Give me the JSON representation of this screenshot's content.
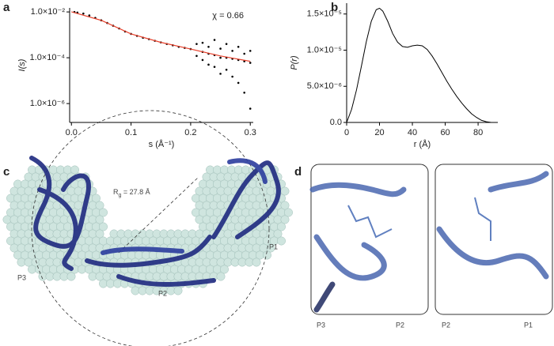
{
  "chart_data": [
    {
      "type": "scatter",
      "panel": "a",
      "x_label": "s (Å⁻¹)",
      "y_label": "I(s)",
      "annotation": "χ = 0.66",
      "yscale": "log",
      "xlim": [
        -0.003,
        0.305
      ],
      "ylim": [
        1.5e-07,
        0.015
      ],
      "xticks": [
        {
          "value": 0,
          "label": "0.0"
        },
        0.1,
        0.2,
        0.3
      ],
      "yticks": [
        {
          "value": 0.01,
          "label": "1.0×10⁻²"
        },
        {
          "value": 0.0001,
          "label": "1.0×10⁻⁴"
        },
        {
          "value": 1e-06,
          "label": "1.0×10⁻⁶"
        }
      ],
      "points": {
        "color": "#000000",
        "x": [
          0.005,
          0.01,
          0.02,
          0.03,
          0.04,
          0.05,
          0.06,
          0.07,
          0.08,
          0.09,
          0.1,
          0.11,
          0.12,
          0.13,
          0.14,
          0.15,
          0.16,
          0.17,
          0.18,
          0.19,
          0.2,
          0.21,
          0.21,
          0.22,
          0.22,
          0.22,
          0.23,
          0.23,
          0.23,
          0.24,
          0.24,
          0.24,
          0.25,
          0.25,
          0.25,
          0.26,
          0.26,
          0.26,
          0.27,
          0.27,
          0.27,
          0.28,
          0.28,
          0.28,
          0.29,
          0.29,
          0.29,
          0.3,
          0.3,
          0.3
        ],
        "y": [
          0.0099,
          0.0094,
          0.0085,
          0.007,
          0.0055,
          0.0043,
          0.0033,
          0.0025,
          0.0019,
          0.0014,
          0.0011,
          0.0009,
          0.00075,
          0.00065,
          0.00055,
          0.00047,
          0.0004,
          0.00035,
          0.0003,
          0.00027,
          0.00024,
          0.0004,
          0.00012,
          0.00018,
          0.00045,
          8e-05,
          0.00015,
          0.0003,
          5e-05,
          0.00013,
          0.0006,
          4e-05,
          0.0001,
          0.00025,
          2e-05,
          0.0001,
          0.0004,
          3e-05,
          9e-05,
          0.0002,
          1.5e-05,
          8e-05,
          0.0003,
          8e-06,
          7e-05,
          0.00015,
          3e-06,
          6e-05,
          0.0002,
          6e-07
        ]
      },
      "fit": {
        "color": "#e8412c",
        "x": [
          0,
          0.05,
          0.1,
          0.15,
          0.2,
          0.25,
          0.3
        ],
        "y": [
          0.0101,
          0.0043,
          0.0011,
          0.00047,
          0.00024,
          0.00012,
          7e-05
        ]
      }
    },
    {
      "type": "line",
      "panel": "b",
      "x_label": "r (Å)",
      "y_label": "P(r)",
      "xlim": [
        0,
        92
      ],
      "ylim": [
        0,
        1.65e-05
      ],
      "xticks": [
        0,
        20,
        40,
        60,
        80
      ],
      "yticks": [
        {
          "value": 0,
          "label": "0.0"
        },
        {
          "value": 5e-06,
          "label": "5.0×10⁻⁶"
        },
        {
          "value": 1e-05,
          "label": "1.0×10⁻⁵"
        },
        {
          "value": 1.5e-05,
          "label": "1.5×10⁻⁵"
        }
      ],
      "color": "#000000",
      "x": [
        0,
        3,
        6,
        9,
        12,
        15,
        18,
        20,
        22,
        25,
        28,
        31,
        34,
        37,
        40,
        43,
        46,
        49,
        52,
        55,
        58,
        61,
        64,
        67,
        70,
        73,
        76,
        79,
        82,
        85,
        88,
        90
      ],
      "values": [
        0,
        1.8e-06,
        4.5e-06,
        7.8e-06,
        1.12e-05,
        1.4e-05,
        1.56e-05,
        1.58e-05,
        1.54e-05,
        1.4e-05,
        1.23e-05,
        1.11e-05,
        1.05e-05,
        1.04e-05,
        1.06e-05,
        1.07e-05,
        1.06e-05,
        1.01e-05,
        9.2e-06,
        8.1e-06,
        6.9e-06,
        5.7e-06,
        4.6e-06,
        3.6e-06,
        2.7e-06,
        1.9e-06,
        1.2e-06,
        7e-07,
        3e-07,
        1e-07,
        0,
        0
      ]
    }
  ],
  "figure": {
    "panel_c": {
      "label": "c",
      "rg_symbol": "R",
      "rg_sub": "g",
      "rg_text": " = 27.8 Å",
      "sites": [
        "P1",
        "P2",
        "P3"
      ]
    },
    "panel_d": {
      "label": "d",
      "left": [
        "P3",
        "P2"
      ],
      "right": [
        "P2",
        "P1"
      ]
    }
  }
}
